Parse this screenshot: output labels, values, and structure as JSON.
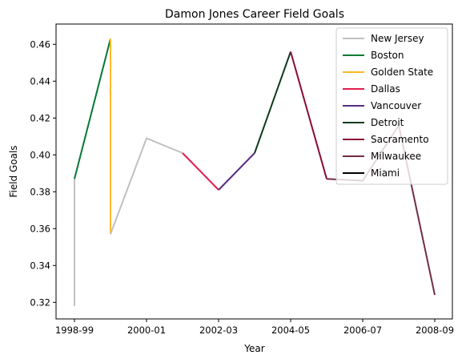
{
  "chart_data": {
    "type": "line",
    "title": "Damon Jones Career Field Goals",
    "xlabel": "Year",
    "ylabel": "Field Goals",
    "x_ticks": [
      "1998-99",
      "2000-01",
      "2002-03",
      "2004-05",
      "2006-07",
      "2008-09"
    ],
    "y_ticks": [
      "0.32",
      "0.34",
      "0.36",
      "0.38",
      "0.40",
      "0.42",
      "0.44",
      "0.46"
    ],
    "ylim": [
      0.311,
      0.471
    ],
    "legend": "top-right",
    "series": [
      {
        "name": "New Jersey",
        "color": "#c0c0c0",
        "points": [
          [
            "1998-99",
            0.318
          ],
          [
            "1998-99",
            0.387
          ]
        ]
      },
      {
        "name": "Boston",
        "color": "#007a33",
        "points": [
          [
            "1998-99",
            0.387
          ],
          [
            "1999-00",
            0.463
          ]
        ]
      },
      {
        "name": "Golden State",
        "color": "#fdb927",
        "points": [
          [
            "1999-00",
            0.463
          ],
          [
            "1999-00",
            0.357
          ]
        ]
      },
      {
        "name": "New Jersey",
        "color": "#c0c0c0",
        "points": [
          [
            "1999-00",
            0.357
          ],
          [
            "2000-01",
            0.409
          ],
          [
            "2001-02",
            0.401
          ]
        ]
      },
      {
        "name": "Dallas",
        "color": "#e31c4d",
        "points": [
          [
            "2001-02",
            0.401
          ],
          [
            "2002-03",
            0.381
          ]
        ]
      },
      {
        "name": "Vancouver",
        "color": "#5a2d81",
        "points": [
          [
            "2002-03",
            0.381
          ],
          [
            "2003-04",
            0.401
          ]
        ]
      },
      {
        "name": "Detroit",
        "color": "#0d3b1e",
        "points": [
          [
            "2003-04",
            0.401
          ],
          [
            "2004-05",
            0.456
          ]
        ]
      },
      {
        "name": "Sacramento",
        "color": "#8b0a36",
        "points": [
          [
            "2004-05",
            0.456
          ],
          [
            "2005-06",
            0.387
          ]
        ]
      },
      {
        "name": "Miami",
        "color": "#000000",
        "points": [
          [
            "2005-06",
            0.387
          ],
          [
            "2005-06",
            0.387
          ]
        ]
      },
      {
        "name": "Milwaukee",
        "color": "#702f3f",
        "points": [
          [
            "2005-06",
            0.387
          ],
          [
            "2006-07",
            0.386
          ],
          [
            "2007-08",
            0.416
          ],
          [
            "2008-09",
            0.324
          ]
        ]
      }
    ],
    "legend_entries": [
      {
        "label": "New Jersey",
        "color": "#c0c0c0"
      },
      {
        "label": "Boston",
        "color": "#007a33"
      },
      {
        "label": "Golden State",
        "color": "#fdb927"
      },
      {
        "label": "Dallas",
        "color": "#e31c4d"
      },
      {
        "label": "Vancouver",
        "color": "#5a2d81"
      },
      {
        "label": "Detroit",
        "color": "#0d3b1e"
      },
      {
        "label": "Sacramento",
        "color": "#8b0a36"
      },
      {
        "label": "Milwaukee",
        "color": "#702f3f"
      },
      {
        "label": "Miami",
        "color": "#000000"
      }
    ]
  }
}
